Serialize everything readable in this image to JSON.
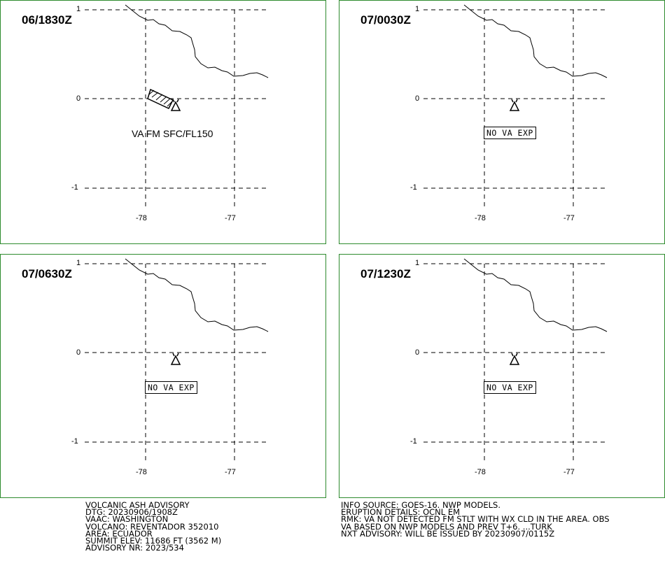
{
  "panels": [
    {
      "time": "06/1830Z",
      "note": "VA FM SFC/FL150",
      "boxed": false,
      "arrow": true
    },
    {
      "time": "07/0030Z",
      "note": "NO VA EXP",
      "boxed": true,
      "arrow": false
    },
    {
      "time": "07/0630Z",
      "note": "NO VA EXP",
      "boxed": true,
      "arrow": false
    },
    {
      "time": "07/1230Z",
      "note": "NO VA EXP",
      "boxed": true,
      "arrow": false
    }
  ],
  "axis": {
    "lat_labels": [
      "1",
      "0",
      "-1"
    ],
    "lon_labels": [
      "-78",
      "-77"
    ]
  },
  "advisory_left": [
    "VOLCANIC ASH ADVISORY",
    "DTG: 20230906/1908Z",
    "VAAC: WASHINGTON",
    "VOLCANO: REVENTADOR 352010",
    "AREA: ECUADOR",
    "SUMMIT ELEV: 11686 FT (3562 M)",
    "ADVISORY NR: 2023/534"
  ],
  "advisory_right": [
    "INFO SOURCE: GOES-16. NWP MODELS.",
    "ERUPTION DETAILS: OCNL EM",
    "RMK: VA NOT DETECTED FM STLT WITH WX CLD IN THE AREA. OBS",
    "VA BASED ON NWP MODELS AND PREV T+6. ...TURK",
    "NXT ADVISORY: WILL BE ISSUED BY 20230907/0115Z"
  ]
}
